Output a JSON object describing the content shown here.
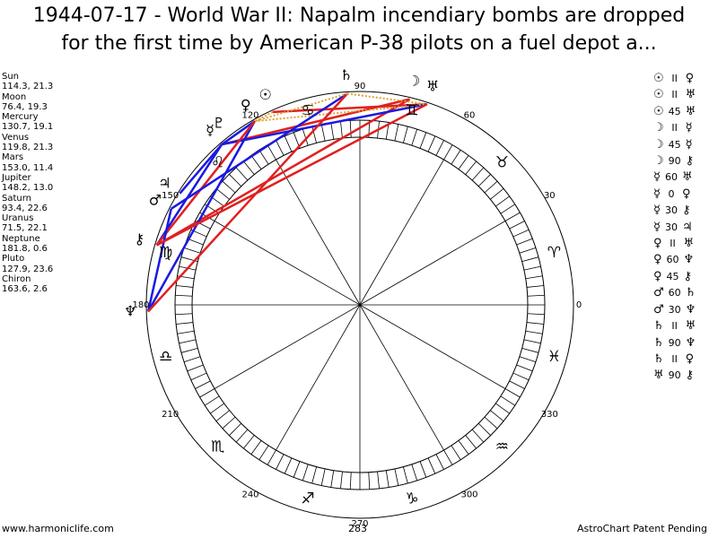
{
  "title_lines": [
    "1944-07-17 - World War II: Napalm incendiary bombs are dropped",
    "for the first time by American P-38 pilots on a fuel depot a..."
  ],
  "planets": [
    {
      "name": "Sun",
      "glyph": "☉",
      "longitude": 114.3,
      "declination": 21.3,
      "position_label": "114.3, 21.3"
    },
    {
      "name": "Moon",
      "glyph": "☽",
      "longitude": 76.4,
      "declination": 19.3,
      "position_label": "76.4, 19.3"
    },
    {
      "name": "Mercury",
      "glyph": "☿",
      "longitude": 130.7,
      "declination": 19.1,
      "position_label": "130.7, 19.1"
    },
    {
      "name": "Venus",
      "glyph": "♀",
      "longitude": 119.8,
      "declination": 21.3,
      "position_label": "119.8, 21.3"
    },
    {
      "name": "Mars",
      "glyph": "♂",
      "longitude": 153.0,
      "declination": 11.4,
      "position_label": "153.0, 11.4"
    },
    {
      "name": "Jupiter",
      "glyph": "♃",
      "longitude": 148.2,
      "declination": 13.0,
      "position_label": "148.2, 13.0"
    },
    {
      "name": "Saturn",
      "glyph": "♄",
      "longitude": 93.4,
      "declination": 22.6,
      "position_label": "93.4, 22.6"
    },
    {
      "name": "Uranus",
      "glyph": "♅",
      "longitude": 71.5,
      "declination": 22.1,
      "position_label": "71.5, 22.1"
    },
    {
      "name": "Neptune",
      "glyph": "♆",
      "longitude": 181.8,
      "declination": 0.6,
      "position_label": "181.8, 0.6"
    },
    {
      "name": "Pluto",
      "glyph": "♇",
      "longitude": 127.9,
      "declination": 23.6,
      "position_label": "127.9, 23.6"
    },
    {
      "name": "Chiron",
      "glyph": "⚷",
      "longitude": 163.6,
      "declination": 2.6,
      "position_label": "163.6, 2.6"
    }
  ],
  "aspects": [
    {
      "p1": "☉",
      "aspect": "II",
      "p2": "♀",
      "color": "#e0a030"
    },
    {
      "p1": "☉",
      "aspect": "II",
      "p2": "♅",
      "color": "#e0a030"
    },
    {
      "p1": "☉",
      "aspect": "45",
      "p2": "♅",
      "color": "#e02020"
    },
    {
      "p1": "☽",
      "aspect": "II",
      "p2": "☿",
      "color": "#e0a030"
    },
    {
      "p1": "☽",
      "aspect": "45",
      "p2": "☿",
      "color": "#e02020"
    },
    {
      "p1": "☽",
      "aspect": "90",
      "p2": "⚷",
      "color": "#e02020"
    },
    {
      "p1": "☿",
      "aspect": "60",
      "p2": "♅",
      "color": "#1a1ae0"
    },
    {
      "p1": "☿",
      "aspect": "0",
      "p2": "♀",
      "color": "#1a1ae0"
    },
    {
      "p1": "☿",
      "aspect": "30",
      "p2": "⚷",
      "color": "#1a1ae0"
    },
    {
      "p1": "☿",
      "aspect": "30",
      "p2": "♃",
      "color": "#1a1ae0"
    },
    {
      "p1": "♀",
      "aspect": "II",
      "p2": "♅",
      "color": "#e0a030"
    },
    {
      "p1": "♀",
      "aspect": "60",
      "p2": "♆",
      "color": "#1a1ae0"
    },
    {
      "p1": "♀",
      "aspect": "45",
      "p2": "⚷",
      "color": "#e02020"
    },
    {
      "p1": "♂",
      "aspect": "60",
      "p2": "♄",
      "color": "#1a1ae0"
    },
    {
      "p1": "♂",
      "aspect": "30",
      "p2": "♆",
      "color": "#1a1ae0"
    },
    {
      "p1": "♄",
      "aspect": "II",
      "p2": "♅",
      "color": "#e0a030"
    },
    {
      "p1": "♄",
      "aspect": "90",
      "p2": "♆",
      "color": "#e02020"
    },
    {
      "p1": "♄",
      "aspect": "II",
      "p2": "♀",
      "color": "#e0a030"
    },
    {
      "p1": "♅",
      "aspect": "90",
      "p2": "⚷",
      "color": "#e02020"
    }
  ],
  "zodiac": [
    {
      "glyph": "♈",
      "longitude": 15
    },
    {
      "glyph": "♉",
      "longitude": 45
    },
    {
      "glyph": "♊",
      "longitude": 75
    },
    {
      "glyph": "♋",
      "longitude": 105
    },
    {
      "glyph": "♌",
      "longitude": 135
    },
    {
      "glyph": "♍",
      "longitude": 165
    },
    {
      "glyph": "♎",
      "longitude": 195
    },
    {
      "glyph": "♏",
      "longitude": 225
    },
    {
      "glyph": "♐",
      "longitude": 255
    },
    {
      "glyph": "♑",
      "longitude": 285
    },
    {
      "glyph": "♒",
      "longitude": 315
    },
    {
      "glyph": "♓",
      "longitude": 345
    }
  ],
  "degree_ticks": [
    0,
    30,
    60,
    90,
    120,
    150,
    180,
    210,
    240,
    270,
    300,
    330
  ],
  "marker": 283,
  "footer": {
    "left": "www.harmoniclife.com",
    "right": "AstroChart Patent Pending"
  }
}
